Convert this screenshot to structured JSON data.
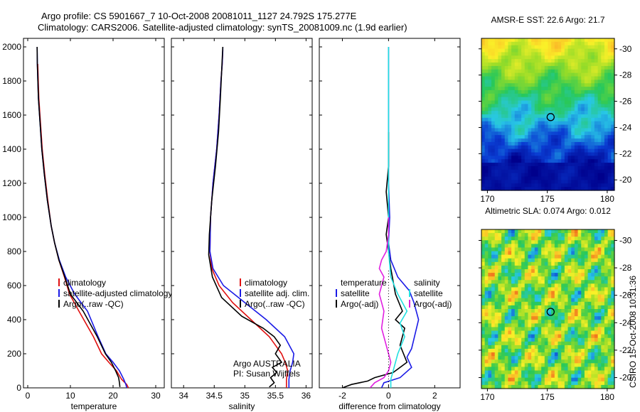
{
  "header": {
    "line1": "Argo profile: CS 5901667_7 10-Oct-2008 20081011_1127 24.792S 175.277E",
    "line2": "Climatology: CARS2006. Satellite-adjusted climatology: synTS_20081009.nc (1.9d earlier)"
  },
  "side_stamp": "CSIRO 15-Oct-2008 10:31:36",
  "colors": {
    "climatology": "#e01010",
    "satellite": "#1a1ae6",
    "argo": "#000000",
    "salinity_satellite": "#22e0e0",
    "salinity_argo": "#e020e0"
  },
  "chart_data": [
    {
      "type": "line",
      "name": "temperature-panel",
      "xlabel": "temperature",
      "ylabel": "",
      "xlim": [
        -1,
        32
      ],
      "ylim": [
        2050,
        0
      ],
      "xticks": [
        0,
        10,
        20,
        30
      ],
      "yticks": [
        0,
        200,
        400,
        600,
        800,
        1000,
        1200,
        1400,
        1600,
        1800,
        2000
      ],
      "legend": [
        "climatology",
        "satellite-adjusted climatology",
        "Argo(..raw -QC)"
      ],
      "series": [
        {
          "role": "climatology",
          "color": "#e01010",
          "x": [
            23.6,
            23.2,
            22.0,
            20.8,
            19.0,
            17.3,
            15.4,
            12.0,
            9.8,
            8.6,
            7.3,
            6.3,
            5.5,
            4.7,
            4.0,
            3.4,
            3.0,
            2.6,
            2.35
          ],
          "y": [
            0,
            20,
            50,
            100,
            150,
            200,
            300,
            450,
            550,
            650,
            750,
            850,
            950,
            1100,
            1250,
            1400,
            1550,
            1700,
            1900
          ]
        },
        {
          "role": "satellite",
          "color": "#1a1ae6",
          "x": [
            23.2,
            23.0,
            22.5,
            21.5,
            20.0,
            18.3,
            16.5,
            14.0,
            11.0,
            8.9,
            7.4,
            6.3,
            5.5,
            4.6,
            3.9,
            3.3,
            2.9,
            2.5,
            2.25,
            2.2
          ],
          "y": [
            0,
            20,
            50,
            100,
            150,
            200,
            300,
            450,
            550,
            650,
            750,
            850,
            950,
            1100,
            1250,
            1400,
            1550,
            1700,
            1900,
            2000
          ]
        },
        {
          "role": "argo",
          "color": "#000000",
          "x": [
            21.6,
            21.5,
            21.3,
            20.6,
            19.6,
            18.2,
            16.3,
            13.0,
            10.0,
            8.7,
            7.3,
            6.3,
            5.5,
            4.6,
            3.9,
            3.3,
            2.9,
            2.5,
            2.25,
            2.2
          ],
          "y": [
            5,
            30,
            60,
            100,
            150,
            200,
            300,
            450,
            550,
            650,
            750,
            850,
            950,
            1100,
            1250,
            1400,
            1550,
            1700,
            1900,
            2000
          ]
        }
      ]
    },
    {
      "type": "line",
      "name": "salinity-panel",
      "xlabel": "salinity",
      "ylabel": "",
      "xlim": [
        33.8,
        36.1
      ],
      "ylim": [
        2050,
        0
      ],
      "xticks": [
        34,
        34.5,
        35,
        35.5,
        36
      ],
      "legend": [
        "climatology",
        "satellite adj. clim.",
        "Argo(..raw -QC)"
      ],
      "annotation": [
        "Argo AUSTRALIA",
        "PI: Susan Wijffels"
      ],
      "series": [
        {
          "role": "climatology",
          "color": "#e01010",
          "x": [
            35.68,
            35.68,
            35.7,
            35.66,
            35.6,
            35.4,
            35.1,
            34.8,
            34.58,
            34.46,
            34.43,
            34.44,
            34.48,
            34.54,
            34.58,
            34.61,
            34.63,
            34.64
          ],
          "y": [
            0,
            50,
            100,
            150,
            200,
            300,
            400,
            500,
            600,
            700,
            800,
            1000,
            1200,
            1400,
            1600,
            1800,
            1900,
            1980
          ]
        },
        {
          "role": "satellite",
          "color": "#1a1ae6",
          "x": [
            35.72,
            35.72,
            35.74,
            35.78,
            35.8,
            35.65,
            35.35,
            35.0,
            34.65,
            34.48,
            34.43,
            34.44,
            34.48,
            34.54,
            34.58,
            34.61,
            34.63,
            34.64,
            34.64
          ],
          "y": [
            0,
            50,
            100,
            150,
            200,
            300,
            400,
            500,
            600,
            700,
            800,
            1000,
            1200,
            1400,
            1600,
            1800,
            1900,
            1980,
            2000
          ]
        },
        {
          "role": "argo",
          "color": "#000000",
          "x": [
            35.4,
            35.48,
            35.42,
            35.52,
            35.45,
            35.6,
            35.5,
            35.58,
            35.48,
            35.3,
            34.95,
            34.62,
            34.47,
            34.41,
            34.42,
            34.46,
            34.52,
            34.57,
            34.6,
            34.62,
            34.64
          ],
          "y": [
            5,
            30,
            60,
            90,
            120,
            150,
            200,
            250,
            300,
            350,
            420,
            530,
            650,
            780,
            900,
            1100,
            1300,
            1500,
            1700,
            1850,
            2000
          ]
        }
      ]
    },
    {
      "type": "line",
      "name": "difference-panel",
      "xlabel": "difference from climatology",
      "ylabel": "",
      "xlim": [
        -3,
        3.1
      ],
      "ylim": [
        2050,
        0
      ],
      "xticks": [
        -2,
        0,
        2
      ],
      "legend_temperature": [
        "temperature",
        "satellite",
        "Argo(-adj)"
      ],
      "legend_salinity": [
        "salinity",
        "satellite",
        "Argo(-adj)"
      ],
      "series": [
        {
          "role": "temperature-satellite",
          "color": "#1a1ae6",
          "x": [
            -0.3,
            -0.2,
            0.5,
            1.0,
            0.8,
            1.0,
            1.3,
            1.1,
            0.9,
            0.4,
            0.1,
            0.0,
            0.05,
            0.0,
            0.0,
            0.0,
            0.0
          ],
          "y": [
            0,
            30,
            60,
            120,
            180,
            230,
            400,
            500,
            570,
            650,
            750,
            850,
            1000,
            1200,
            1500,
            1800,
            2000
          ]
        },
        {
          "role": "temperature-argo",
          "color": "#000000",
          "x": [
            -2.0,
            -1.6,
            -0.9,
            -0.6,
            0.2,
            0.8,
            0.5,
            0.7,
            0.3,
            0.6,
            0.3,
            0.1,
            0.0,
            -0.1,
            0.0,
            -0.1,
            0.0,
            0.0
          ],
          "y": [
            0,
            20,
            40,
            60,
            90,
            150,
            250,
            350,
            400,
            450,
            550,
            700,
            800,
            900,
            1000,
            1150,
            1300,
            1500
          ]
        },
        {
          "role": "salinity-satellite",
          "color": "#22e0e0",
          "x": [
            0.1,
            0.1,
            0.2,
            0.4,
            0.7,
            0.5,
            0.8,
            0.4,
            0.1,
            0.0,
            0.0,
            0.0,
            0.0,
            0.0
          ],
          "y": [
            0,
            50,
            100,
            200,
            300,
            380,
            450,
            550,
            650,
            800,
            1000,
            1400,
            1800,
            2000
          ]
        },
        {
          "role": "salinity-argo",
          "color": "#e020e0",
          "x": [
            -0.8,
            -0.6,
            -0.2,
            0.0,
            0.1,
            0.0,
            -0.1,
            -0.3,
            -0.2,
            -0.4,
            -0.2,
            -0.4,
            -0.3,
            -0.1,
            0.0,
            0.0
          ],
          "y": [
            0,
            30,
            60,
            100,
            150,
            200,
            250,
            350,
            450,
            550,
            650,
            700,
            750,
            800,
            900,
            1000
          ]
        },
        {
          "role": "zero-reference",
          "color": "#000000",
          "x": [
            0,
            0
          ],
          "y": [
            0,
            700
          ]
        }
      ]
    },
    {
      "type": "heatmap",
      "name": "sst-map",
      "title": "AMSR-E SST: 22.6 Argo: 21.7",
      "xlim": [
        169.5,
        180.6
      ],
      "ylim": [
        -30.8,
        -19.2
      ],
      "xticks": [
        170,
        175,
        180
      ],
      "yticks": [
        -20,
        -22,
        -24,
        -26,
        -28,
        -30
      ],
      "marker": {
        "x": 175.277,
        "y": -24.792
      },
      "pattern": "latitudinal-bands"
    },
    {
      "type": "heatmap",
      "name": "sla-map",
      "title": "Altimetric SLA: 0.074 Argo: 0.012",
      "xlim": [
        169.5,
        180.6
      ],
      "ylim": [
        -30.8,
        -19.2
      ],
      "xticks": [
        170,
        175,
        180
      ],
      "yticks": [
        -20,
        -22,
        -24,
        -26,
        -28,
        -30
      ],
      "marker": {
        "x": 175.277,
        "y": -24.792
      },
      "pattern": "eddies"
    }
  ]
}
